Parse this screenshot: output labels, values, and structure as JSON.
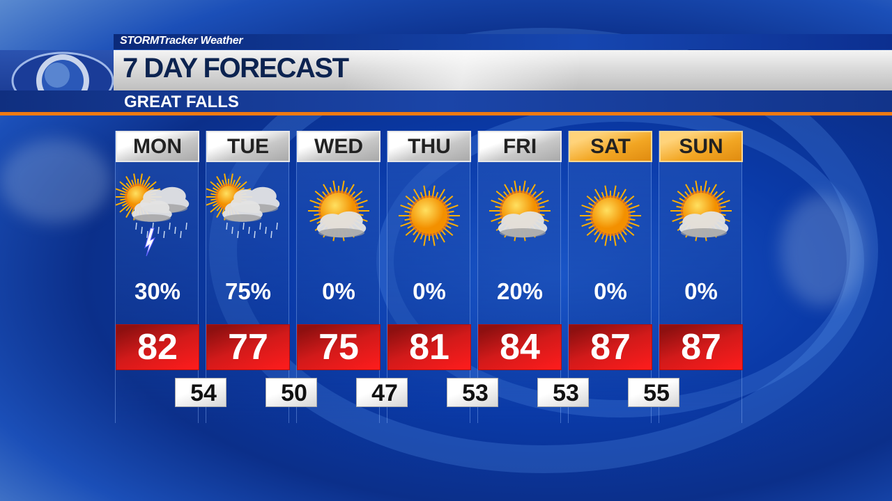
{
  "header": {
    "brand": "STORMTracker Weather",
    "title": "7 DAY FORECAST",
    "location": "GREAT FALLS"
  },
  "colors": {
    "high_box": "#d21a1a",
    "weekend_header": "#f2a623",
    "accent_line": "#f07a12",
    "title_text": "#0c2350"
  },
  "days": [
    {
      "label": "MON",
      "icon": "partly-sunny-thunderstorm-icon",
      "precip": "30%",
      "high": "82",
      "weekend": false
    },
    {
      "label": "TUE",
      "icon": "partly-sunny-rain-icon",
      "precip": "75%",
      "high": "77",
      "weekend": false
    },
    {
      "label": "WED",
      "icon": "mostly-sunny-icon",
      "precip": "0%",
      "high": "75",
      "weekend": false
    },
    {
      "label": "THU",
      "icon": "sunny-icon",
      "precip": "0%",
      "high": "81",
      "weekend": false
    },
    {
      "label": "FRI",
      "icon": "mostly-sunny-icon",
      "precip": "20%",
      "high": "84",
      "weekend": false
    },
    {
      "label": "SAT",
      "icon": "sunny-icon",
      "precip": "0%",
      "high": "87",
      "weekend": true
    },
    {
      "label": "SUN",
      "icon": "mostly-sunny-icon",
      "precip": "0%",
      "high": "87",
      "weekend": true
    }
  ],
  "lows": [
    "54",
    "50",
    "47",
    "53",
    "53",
    "55"
  ]
}
